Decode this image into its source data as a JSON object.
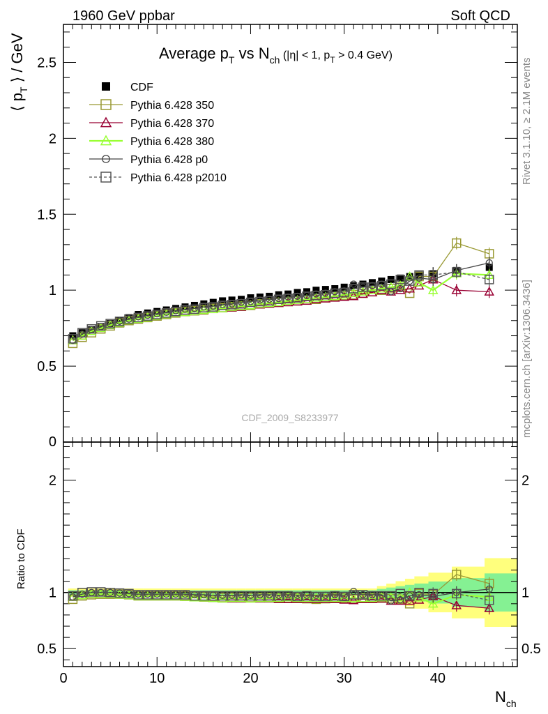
{
  "header": {
    "left": "1960 GeV ppbar",
    "right": "Soft QCD"
  },
  "side": {
    "rivet": "Rivet 3.1.10, ≥ 2.1M events",
    "mcplots": "mcplots.cern.ch [arXiv:1306.3436]"
  },
  "title": {
    "main": "Average p",
    "main_sub": "T",
    "vs": " vs N",
    "vs_sub": "ch",
    "cut1": " (|η| < 1, p",
    "cut_sub": "T",
    "cut2": " > 0.4 GeV)"
  },
  "watermark": "CDF_2009_S8233977",
  "axes": {
    "ylabel_top": "⟨ p",
    "ylabel_top_sub": "T",
    "ylabel_top_end": " ⟩ / GeV",
    "ylabel_bottom": "Ratio to CDF",
    "xlabel": "N",
    "xlabel_sub": "ch"
  },
  "chart_data": [
    {
      "type": "scatter",
      "panel": "main",
      "xlim": [
        0,
        48.5
      ],
      "ylim": [
        0,
        2.75
      ],
      "x_ticks": [
        "0",
        "10",
        "20",
        "30",
        "40"
      ],
      "y_ticks": [
        "0.5",
        "1",
        "1.5",
        "2",
        "2.5"
      ],
      "series": [
        {
          "name": "CDF",
          "color": "#000000",
          "marker": "filled-square",
          "line": "none",
          "x": [
            1,
            2,
            3,
            4,
            5,
            6,
            7,
            8,
            9,
            10,
            11,
            12,
            13,
            14,
            15,
            16,
            17,
            18,
            19,
            20,
            21,
            22,
            23,
            24,
            25,
            26,
            27,
            28,
            29,
            30,
            31,
            32,
            33,
            34,
            35,
            36,
            37,
            38,
            39.5,
            42,
            45.5
          ],
          "y": [
            0.7,
            0.72,
            0.74,
            0.76,
            0.78,
            0.8,
            0.82,
            0.84,
            0.85,
            0.86,
            0.87,
            0.88,
            0.89,
            0.9,
            0.91,
            0.92,
            0.93,
            0.935,
            0.94,
            0.95,
            0.955,
            0.96,
            0.97,
            0.975,
            0.985,
            0.99,
            1.0,
            1.005,
            1.01,
            1.02,
            1.03,
            1.04,
            1.05,
            1.06,
            1.07,
            1.08,
            1.09,
            1.1,
            1.11,
            1.13,
            1.15
          ]
        },
        {
          "name": "Pythia 6.428 350",
          "color": "#999933",
          "marker": "open-square",
          "line": "solid",
          "x": [
            1,
            2,
            3,
            4,
            5,
            6,
            7,
            8,
            9,
            10,
            11,
            12,
            13,
            14,
            15,
            16,
            17,
            18,
            19,
            20,
            21,
            22,
            23,
            24,
            25,
            26,
            27,
            28,
            29,
            30,
            31,
            32,
            33,
            34,
            35,
            36,
            37,
            38,
            39.5,
            42,
            45.5
          ],
          "y": [
            0.65,
            0.69,
            0.72,
            0.745,
            0.765,
            0.785,
            0.8,
            0.81,
            0.82,
            0.83,
            0.84,
            0.85,
            0.86,
            0.865,
            0.87,
            0.88,
            0.885,
            0.89,
            0.895,
            0.9,
            0.91,
            0.915,
            0.92,
            0.925,
            0.93,
            0.935,
            0.94,
            0.95,
            0.96,
            0.965,
            0.97,
            0.98,
            0.99,
            1.0,
            1.01,
            1.02,
            0.98,
            1.09,
            1.09,
            1.31,
            1.24
          ]
        },
        {
          "name": "Pythia 6.428 370",
          "color": "#990033",
          "marker": "open-triangle",
          "line": "solid",
          "x": [
            1,
            2,
            3,
            4,
            5,
            6,
            7,
            8,
            9,
            10,
            11,
            12,
            13,
            14,
            15,
            16,
            17,
            18,
            19,
            20,
            21,
            22,
            23,
            24,
            25,
            26,
            27,
            28,
            29,
            30,
            31,
            32,
            33,
            34,
            35,
            36,
            37,
            38,
            39.5,
            42,
            45.5
          ],
          "y": [
            0.67,
            0.7,
            0.73,
            0.75,
            0.77,
            0.785,
            0.8,
            0.81,
            0.82,
            0.83,
            0.84,
            0.85,
            0.855,
            0.86,
            0.87,
            0.875,
            0.88,
            0.885,
            0.89,
            0.9,
            0.905,
            0.91,
            0.915,
            0.92,
            0.925,
            0.93,
            0.94,
            0.945,
            0.95,
            0.955,
            0.96,
            0.975,
            0.985,
            1.0,
            0.99,
            1.0,
            1.01,
            1.03,
            1.07,
            1.0,
            0.99
          ]
        },
        {
          "name": "Pythia 6.428 380",
          "color": "#99ff33",
          "marker": "open-triangle",
          "line": "solid",
          "x": [
            1,
            2,
            3,
            4,
            5,
            6,
            7,
            8,
            9,
            10,
            11,
            12,
            13,
            14,
            15,
            16,
            17,
            18,
            19,
            20,
            21,
            22,
            23,
            24,
            25,
            26,
            27,
            28,
            29,
            30,
            31,
            32,
            33,
            34,
            35,
            36,
            37,
            38,
            39.5,
            42,
            45.5
          ],
          "y": [
            0.67,
            0.7,
            0.73,
            0.75,
            0.77,
            0.785,
            0.8,
            0.81,
            0.82,
            0.83,
            0.84,
            0.85,
            0.855,
            0.86,
            0.87,
            0.875,
            0.88,
            0.89,
            0.895,
            0.9,
            0.91,
            0.915,
            0.92,
            0.93,
            0.935,
            0.94,
            0.95,
            0.955,
            0.96,
            0.97,
            0.98,
            0.99,
            1.0,
            1.01,
            1.02,
            1.03,
            1.09,
            1.05,
            1.0,
            1.11,
            1.1
          ]
        },
        {
          "name": "Pythia 6.428 p0",
          "color": "#444444",
          "marker": "open-circle",
          "line": "solid",
          "x": [
            1,
            2,
            3,
            4,
            5,
            6,
            7,
            8,
            9,
            10,
            11,
            12,
            13,
            14,
            15,
            16,
            17,
            18,
            19,
            20,
            21,
            22,
            23,
            24,
            25,
            26,
            27,
            28,
            29,
            30,
            31,
            32,
            33,
            34,
            35,
            36,
            37,
            38,
            39.5,
            42,
            45.5
          ],
          "y": [
            0.67,
            0.71,
            0.74,
            0.76,
            0.78,
            0.795,
            0.81,
            0.825,
            0.835,
            0.845,
            0.855,
            0.865,
            0.875,
            0.88,
            0.89,
            0.895,
            0.905,
            0.91,
            0.92,
            0.925,
            0.935,
            0.94,
            0.945,
            0.955,
            0.96,
            0.965,
            0.975,
            0.98,
            0.99,
            0.995,
            1.04,
            1.02,
            1.03,
            1.04,
            0.99,
            1.01,
            1.06,
            1.08,
            1.07,
            1.13,
            1.18
          ]
        },
        {
          "name": "Pythia 6.428 p2010",
          "color": "#555555",
          "marker": "open-square",
          "line": "dashed",
          "x": [
            1,
            2,
            3,
            4,
            5,
            6,
            7,
            8,
            9,
            10,
            11,
            12,
            13,
            14,
            15,
            16,
            17,
            18,
            19,
            20,
            21,
            22,
            23,
            24,
            25,
            26,
            27,
            28,
            29,
            30,
            31,
            32,
            33,
            34,
            35,
            36,
            37,
            38,
            39.5,
            42,
            45.5
          ],
          "y": [
            0.68,
            0.72,
            0.745,
            0.765,
            0.78,
            0.795,
            0.81,
            0.82,
            0.83,
            0.84,
            0.85,
            0.86,
            0.87,
            0.875,
            0.885,
            0.89,
            0.9,
            0.905,
            0.91,
            0.92,
            0.925,
            0.93,
            0.94,
            0.945,
            0.95,
            0.96,
            0.965,
            0.97,
            0.98,
            0.985,
            1.01,
            1.02,
            1.02,
            1.03,
            1.04,
            1.07,
            1.06,
            1.1,
            1.1,
            1.12,
            1.07
          ]
        }
      ]
    },
    {
      "type": "scatter",
      "panel": "ratio",
      "xlim": [
        0,
        48.5
      ],
      "ylim": [
        0.34,
        2.34
      ],
      "x_ticks": [
        "0",
        "10",
        "20",
        "30",
        "40"
      ],
      "y_ticks": [
        "0.5",
        "1",
        "2"
      ],
      "ylabel": "Ratio to CDF",
      "reference_line": 1,
      "series": [
        {
          "name": "Pythia 6.428 350",
          "color": "#999933",
          "marker": "open-square",
          "line": "solid",
          "x": [
            1,
            2,
            3,
            4,
            5,
            6,
            7,
            8,
            9,
            10,
            11,
            12,
            13,
            14,
            15,
            16,
            17,
            18,
            19,
            20,
            21,
            22,
            23,
            24,
            25,
            26,
            27,
            28,
            29,
            30,
            31,
            32,
            33,
            34,
            35,
            36,
            37,
            38,
            39.5,
            42,
            45.5
          ],
          "y": [
            0.94,
            0.97,
            0.98,
            0.985,
            0.985,
            0.985,
            0.98,
            0.97,
            0.97,
            0.97,
            0.97,
            0.97,
            0.97,
            0.965,
            0.96,
            0.96,
            0.955,
            0.955,
            0.955,
            0.955,
            0.955,
            0.955,
            0.95,
            0.95,
            0.95,
            0.945,
            0.94,
            0.945,
            0.95,
            0.95,
            0.945,
            0.95,
            0.95,
            0.95,
            0.945,
            0.94,
            0.9,
            0.99,
            0.98,
            1.16,
            1.08
          ]
        },
        {
          "name": "Pythia 6.428 370",
          "color": "#990033",
          "marker": "open-triangle",
          "line": "solid",
          "x": [
            1,
            2,
            3,
            4,
            5,
            6,
            7,
            8,
            9,
            10,
            11,
            12,
            13,
            14,
            15,
            16,
            17,
            18,
            19,
            20,
            21,
            22,
            23,
            24,
            25,
            26,
            27,
            28,
            29,
            30,
            31,
            32,
            33,
            34,
            35,
            36,
            37,
            38,
            39.5,
            42,
            45.5
          ],
          "y": [
            0.96,
            0.975,
            0.985,
            0.985,
            0.985,
            0.98,
            0.975,
            0.965,
            0.965,
            0.965,
            0.965,
            0.965,
            0.96,
            0.955,
            0.955,
            0.95,
            0.945,
            0.945,
            0.945,
            0.945,
            0.945,
            0.945,
            0.94,
            0.94,
            0.94,
            0.94,
            0.94,
            0.94,
            0.94,
            0.935,
            0.93,
            0.94,
            0.94,
            0.945,
            0.925,
            0.925,
            0.925,
            0.935,
            0.965,
            0.885,
            0.86
          ]
        },
        {
          "name": "Pythia 6.428 380",
          "color": "#99ff33",
          "marker": "open-triangle",
          "line": "solid",
          "x": [
            1,
            2,
            3,
            4,
            5,
            6,
            7,
            8,
            9,
            10,
            11,
            12,
            13,
            14,
            15,
            16,
            17,
            18,
            19,
            20,
            21,
            22,
            23,
            24,
            25,
            26,
            27,
            28,
            29,
            30,
            31,
            32,
            33,
            34,
            35,
            36,
            37,
            38,
            39.5,
            42,
            45.5
          ],
          "y": [
            0.96,
            0.975,
            0.985,
            0.985,
            0.985,
            0.98,
            0.975,
            0.965,
            0.965,
            0.965,
            0.965,
            0.965,
            0.96,
            0.955,
            0.955,
            0.95,
            0.945,
            0.95,
            0.95,
            0.945,
            0.95,
            0.95,
            0.95,
            0.955,
            0.95,
            0.95,
            0.95,
            0.95,
            0.95,
            0.95,
            0.95,
            0.95,
            0.95,
            0.955,
            0.955,
            0.955,
            1.0,
            0.955,
            0.9,
            0.98,
            0.96
          ]
        },
        {
          "name": "Pythia 6.428 p0",
          "color": "#444444",
          "marker": "open-circle",
          "line": "solid",
          "x": [
            1,
            2,
            3,
            4,
            5,
            6,
            7,
            8,
            9,
            10,
            11,
            12,
            13,
            14,
            15,
            16,
            17,
            18,
            19,
            20,
            21,
            22,
            23,
            24,
            25,
            26,
            27,
            28,
            29,
            30,
            31,
            32,
            33,
            34,
            35,
            36,
            37,
            38,
            39.5,
            42,
            45.5
          ],
          "y": [
            0.96,
            0.985,
            1.0,
            1.0,
            1.0,
            0.995,
            0.99,
            0.985,
            0.985,
            0.985,
            0.985,
            0.985,
            0.985,
            0.98,
            0.98,
            0.975,
            0.975,
            0.975,
            0.98,
            0.975,
            0.98,
            0.98,
            0.975,
            0.98,
            0.975,
            0.975,
            0.975,
            0.975,
            0.98,
            0.975,
            1.01,
            0.98,
            0.98,
            0.98,
            0.925,
            0.935,
            0.97,
            0.98,
            0.965,
            1.0,
            1.03
          ]
        },
        {
          "name": "Pythia 6.428 p2010",
          "color": "#555555",
          "marker": "open-square",
          "line": "dashed",
          "x": [
            1,
            2,
            3,
            4,
            5,
            6,
            7,
            8,
            9,
            10,
            11,
            12,
            13,
            14,
            15,
            16,
            17,
            18,
            19,
            20,
            21,
            22,
            23,
            24,
            25,
            26,
            27,
            28,
            29,
            30,
            31,
            32,
            33,
            34,
            35,
            36,
            37,
            38,
            39.5,
            42,
            45.5
          ],
          "y": [
            0.97,
            1.0,
            1.005,
            1.005,
            1.0,
            0.995,
            0.99,
            0.98,
            0.98,
            0.98,
            0.98,
            0.98,
            0.98,
            0.97,
            0.97,
            0.97,
            0.97,
            0.97,
            0.97,
            0.97,
            0.97,
            0.97,
            0.97,
            0.97,
            0.965,
            0.97,
            0.965,
            0.965,
            0.97,
            0.965,
            0.98,
            0.98,
            0.97,
            0.97,
            0.97,
            0.99,
            0.97,
            1.0,
            0.99,
            0.99,
            0.93
          ]
        }
      ]
    }
  ]
}
